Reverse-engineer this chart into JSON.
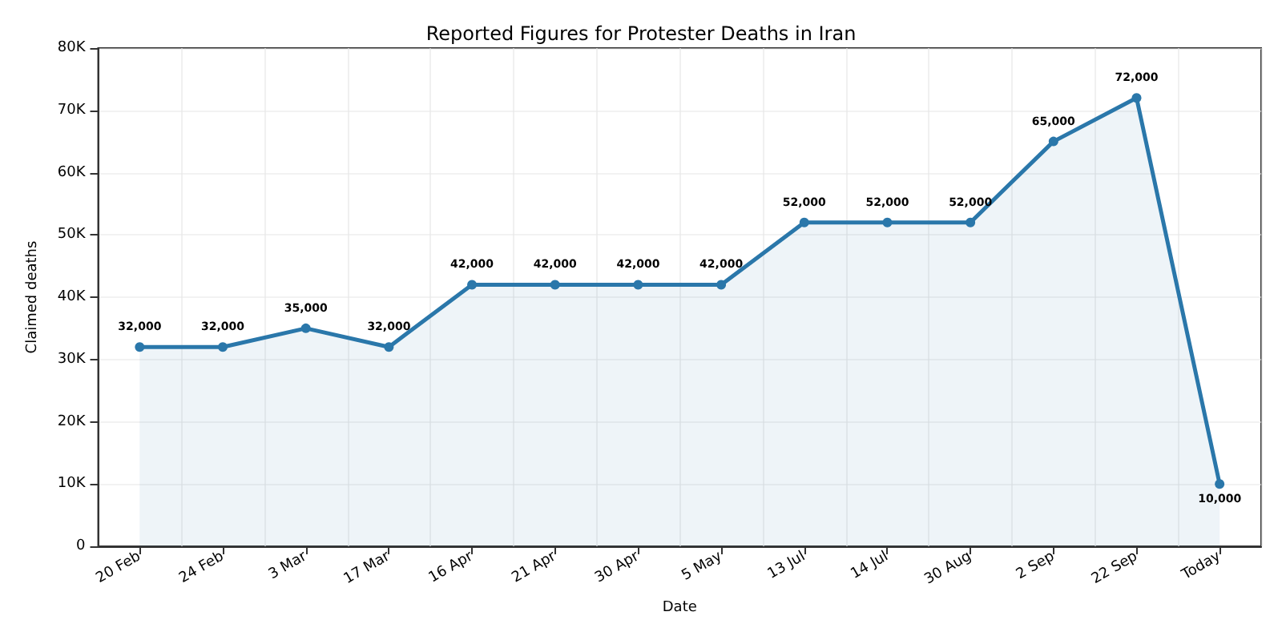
{
  "chart_data": {
    "type": "area",
    "title": "Reported Figures for Protester Deaths in Iran",
    "xlabel": "Date",
    "ylabel": "Claimed deaths",
    "categories": [
      "20 Feb",
      "24 Feb",
      "3 Mar",
      "17 Mar",
      "16 Apr",
      "21 Apr",
      "30 Apr",
      "5 May",
      "13 Jul",
      "14 Jul",
      "30 Aug",
      "2 Sep",
      "22 Sep",
      "Today"
    ],
    "values": [
      32000,
      32000,
      35000,
      32000,
      42000,
      42000,
      42000,
      42000,
      52000,
      52000,
      52000,
      65000,
      72000,
      10000
    ],
    "value_labels": [
      "32,000",
      "32,000",
      "35,000",
      "32,000",
      "42,000",
      "42,000",
      "42,000",
      "42,000",
      "52,000",
      "52,000",
      "52,000",
      "65,000",
      "72,000",
      "10,000"
    ],
    "color": "#2a77aa",
    "ylim": [
      0,
      80000
    ],
    "yticks": [
      0,
      {
        "value": 10000,
        "label": "10K"
      },
      {
        "value": 20000,
        "label": "20K"
      },
      {
        "value": 30000,
        "label": "30K"
      },
      {
        "value": 40000,
        "label": "40K"
      },
      {
        "value": 50000,
        "label": "50K"
      },
      {
        "value": 60000,
        "label": "60K"
      },
      {
        "value": 70000,
        "label": "70K"
      },
      {
        "value": 80000,
        "label": "80K"
      }
    ],
    "grid": true,
    "marker": "circle",
    "line_style": "solid"
  }
}
